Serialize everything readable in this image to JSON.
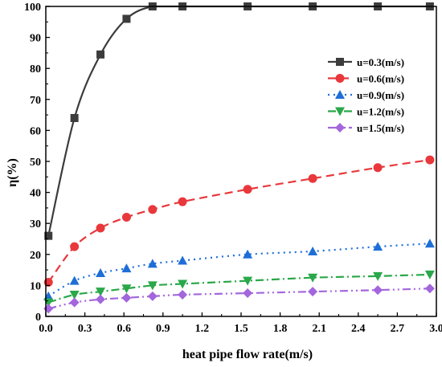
{
  "chart_data": {
    "type": "line",
    "xlabel": "heat pipe flow rate(m/s)",
    "ylabel": "η(%)",
    "xlim": [
      0.0,
      3.0
    ],
    "ylim": [
      0,
      100
    ],
    "xticks": [
      0.0,
      0.3,
      0.6,
      0.9,
      1.2,
      1.5,
      1.8,
      2.1,
      2.4,
      2.7,
      3.0
    ],
    "xtick_labels": [
      "0.0",
      "0.3",
      "0.6",
      "0.9",
      "1.2",
      "1.5",
      "1.8",
      "2.1",
      "2.4",
      "2.7",
      "3.0"
    ],
    "yticks": [
      0,
      10,
      20,
      30,
      40,
      50,
      60,
      70,
      80,
      90,
      100
    ],
    "ytick_labels": [
      "0",
      "10",
      "20",
      "30",
      "40",
      "50",
      "60",
      "70",
      "80",
      "90",
      "100"
    ],
    "grid": false,
    "legend": "top-right",
    "x": [
      0.02,
      0.22,
      0.42,
      0.62,
      0.82,
      1.05,
      1.55,
      2.05,
      2.55,
      2.95
    ],
    "series": [
      {
        "name": "u=0.3(m/s)",
        "values": [
          26,
          64,
          84.5,
          96,
          100,
          100,
          100,
          100,
          100,
          100
        ],
        "color": "#3c3c3c",
        "marker": "square",
        "dash": "solid"
      },
      {
        "name": "u=0.6(m/s)",
        "values": [
          11,
          22.5,
          28.5,
          32,
          34.5,
          37,
          41,
          44.5,
          48,
          50.5
        ],
        "color": "#e8383c",
        "marker": "circle",
        "dash": "dash"
      },
      {
        "name": "u=0.9(m/s)",
        "values": [
          6.5,
          11.5,
          14,
          15.5,
          17,
          18,
          20,
          21,
          22.5,
          23.5
        ],
        "color": "#1e6ed8",
        "marker": "triangle-up",
        "dash": "dot"
      },
      {
        "name": "u=1.2(m/s)",
        "values": [
          4.5,
          7,
          8,
          9,
          10,
          10.5,
          11.5,
          12.5,
          13,
          13.5
        ],
        "color": "#2aa84a",
        "marker": "triangle-down",
        "dash": "dashdot"
      },
      {
        "name": "u=1.5(m/s)",
        "values": [
          2.5,
          4.5,
          5.5,
          6,
          6.5,
          7,
          7.5,
          8,
          8.5,
          9
        ],
        "color": "#a366dd",
        "marker": "diamond",
        "dash": "dashdotdot"
      }
    ]
  }
}
